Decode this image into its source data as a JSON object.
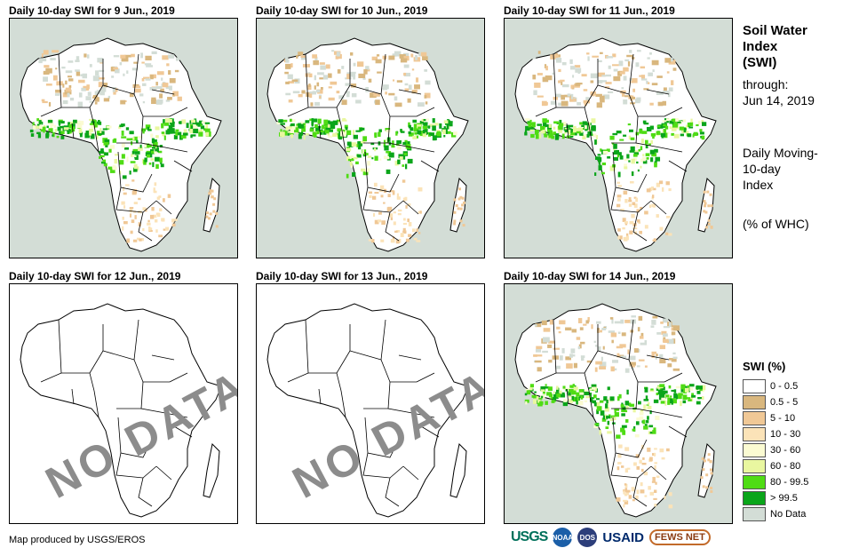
{
  "panels": [
    {
      "title": "Daily 10-day SWI for 9 Jun., 2019",
      "has_data": true
    },
    {
      "title": "Daily 10-day SWI for 10 Jun., 2019",
      "has_data": true
    },
    {
      "title": "Daily 10-day SWI for 11 Jun., 2019",
      "has_data": true
    },
    {
      "title": "Daily 10-day SWI for 12 Jun., 2019",
      "has_data": false,
      "stamp": "NO DATA"
    },
    {
      "title": "Daily 10-day SWI for 13 Jun., 2019",
      "has_data": false,
      "stamp": "NO DATA"
    },
    {
      "title": "Daily 10-day SWI for 14 Jun., 2019",
      "has_data": true
    }
  ],
  "sidebar": {
    "title_line1": "Soil Water",
    "title_line2": "Index",
    "title_line3": "(SWI)",
    "through_label": "through:",
    "through_date": "Jun 14, 2019",
    "desc_line1": "Daily Moving-",
    "desc_line2": "10-day",
    "desc_line3": "Index",
    "unit": "(% of WHC)"
  },
  "legend": {
    "title": "SWI (%)",
    "items": [
      {
        "label": "0 - 0.5",
        "color": "#ffffff"
      },
      {
        "label": "0.5 - 5",
        "color": "#d9b77e"
      },
      {
        "label": "5 - 10",
        "color": "#f0c896"
      },
      {
        "label": "10 - 30",
        "color": "#fbe3b8"
      },
      {
        "label": "30 - 60",
        "color": "#fbfbd2"
      },
      {
        "label": "60 - 80",
        "color": "#e9f7a0"
      },
      {
        "label": "80 - 99.5",
        "color": "#4fdc14"
      },
      {
        "label": "> 99.5",
        "color": "#0aa51a"
      },
      {
        "label": "No Data",
        "color": "#d3ddd6"
      }
    ]
  },
  "footer": {
    "credit": "Map produced by USGS/EROS",
    "logo_usgs": "USGS",
    "logo_noaa": "NOAA",
    "logo_dos": "DOS",
    "logo_usaid": "USAID",
    "logo_fews": "FEWS NET"
  },
  "colors": {
    "ocean": "#d3ddd6",
    "land": "#ffffff",
    "border": "#000000",
    "stamp": "#8c8c8c"
  }
}
